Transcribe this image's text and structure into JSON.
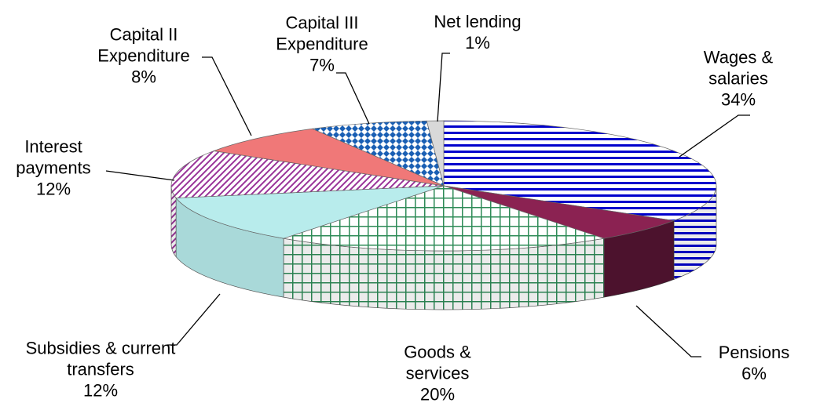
{
  "chart_data": {
    "type": "pie3d",
    "categories": [
      "Wages & salaries",
      "Pensions",
      "Goods & services",
      "Subsidies & current transfers",
      "Interest payments",
      "Capital II Expenditure",
      "Capital III Expenditure",
      "Net lending"
    ],
    "values": [
      34,
      6,
      20,
      12,
      12,
      8,
      7,
      1
    ],
    "value_labels": [
      "34%",
      "6%",
      "20%",
      "12%",
      "12%",
      "8%",
      "7%",
      "1%"
    ],
    "colors": [
      "#0000cc",
      "#8b2252",
      "#2e8b57",
      "#b8ecec",
      "#993399",
      "#f07878",
      "#1a5fb4",
      "#d9d9d9"
    ]
  }
}
